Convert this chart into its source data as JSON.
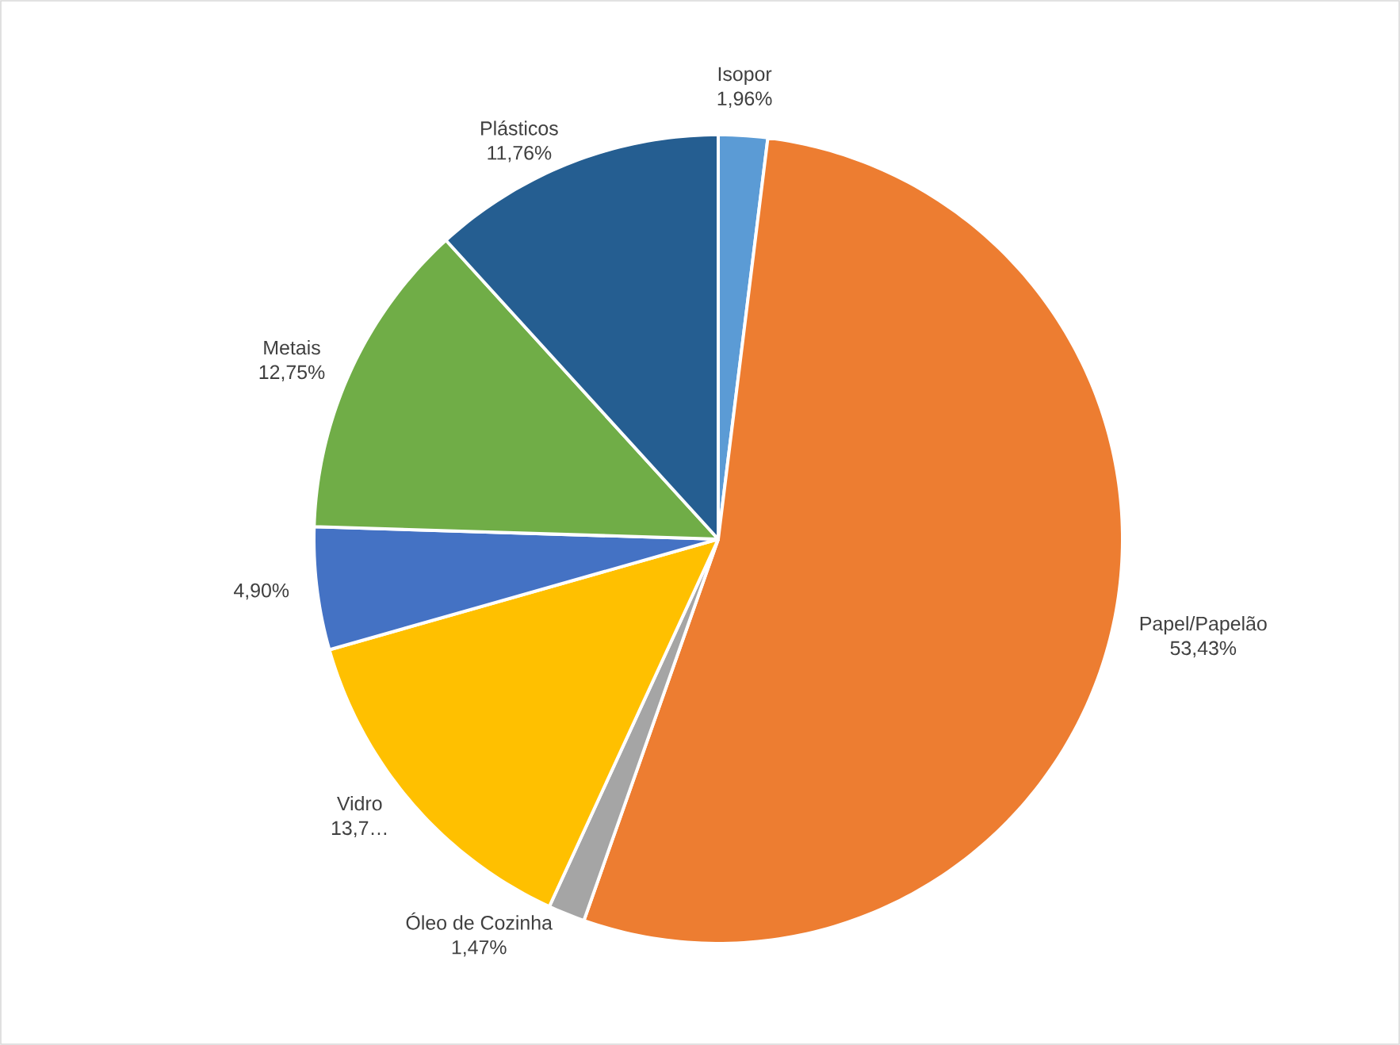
{
  "chart_data": {
    "type": "pie",
    "categories": [
      "Isopor",
      "Papel/Papelão",
      "Óleo de Cozinha",
      "Vidro",
      null,
      "Metais",
      "Plásticos"
    ],
    "values": [
      1.96,
      53.43,
      1.47,
      13.73,
      4.9,
      12.75,
      11.76
    ],
    "colors": [
      "#5b9bd5",
      "#ed7d31",
      "#a5a5a5",
      "#ffc000",
      "#4472c4",
      "#70ad47",
      "#255e91"
    ],
    "value_labels": [
      "1,96%",
      "53,43%",
      "1,47%",
      "13,7…",
      "4,90%",
      "12,75%",
      "11,76%"
    ]
  }
}
